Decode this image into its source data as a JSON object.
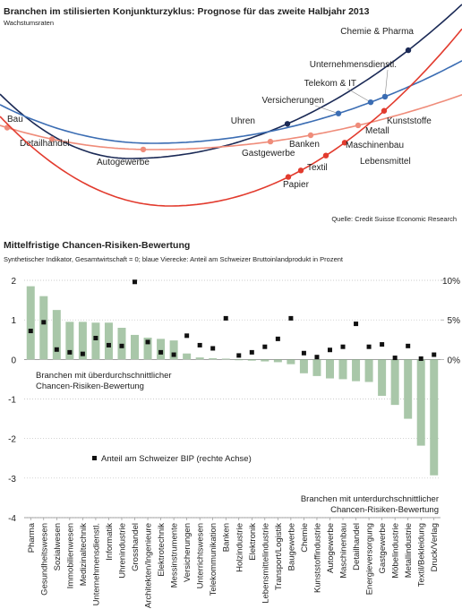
{
  "chart_data": [
    {
      "type": "cycle",
      "title": "Branchen im stilisierten Konjunkturzyklus: Prognose für das zweite Halbjahr 2013",
      "subtitle": "Wachstumsraten",
      "source": "Quelle: Credit Suisse Economic Research",
      "curves": [
        {
          "color": "#1b2a56",
          "labels": [
            "Uhren",
            "Chemie & Pharma"
          ]
        },
        {
          "color": "#3b6db3",
          "labels": [
            "Versicherungen",
            "Telekom & IT",
            "Unternehmensdienstl."
          ]
        },
        {
          "color": "#ef8c7a",
          "labels": [
            "Bau",
            "Detailhandel",
            "Autogewerbe",
            "Gastgewerbe",
            "Banken",
            "Metall"
          ]
        },
        {
          "color": "#e23b2e",
          "labels": [
            "Papier",
            "Textil",
            "Lebensmittel",
            "Maschinenbau",
            "Kunststoffe"
          ]
        }
      ]
    },
    {
      "type": "bar",
      "title": "Mittelfristige Chancen-Risiken-Bewertung",
      "subtitle": "Synthetischer Indikator, Gesamtwirtschaft = 0; blaue Vierecke: Anteil am Schweizer Bruttoinlandprodukt in Prozent",
      "categories": [
        "Pharma",
        "Gesundheitswesen",
        "Sozialwesen",
        "Immobilienwesen",
        "Medizinaltechnik",
        "Unternehmensdienstl.",
        "Informatik",
        "Uhrenindustrie",
        "Grosshandel",
        "Architekten/Ingenieure",
        "Elektrotechnik",
        "Messinstrumente",
        "Versicherungen",
        "Unterrichtswesen",
        "Telekommunikation",
        "Banken",
        "Holzindustrie",
        "Elektronik",
        "Lebensmittelindustrie",
        "Transport/Logistik",
        "Baugewerbe",
        "Chemie",
        "Kunststoffindustrie",
        "Autogewerbe",
        "Maschinenbau",
        "Detailhandel",
        "Energieversorgung",
        "Gastgewerbe",
        "Möbelindustrie",
        "Metallindustrie",
        "Textil/Bekleidung",
        "Druck/Verlag"
      ],
      "series": [
        {
          "color": "#a9c7a9",
          "values": [
            1.85,
            1.6,
            1.25,
            0.95,
            0.95,
            0.93,
            0.93,
            0.8,
            0.62,
            0.55,
            0.52,
            0.48,
            0.15,
            0.05,
            0.03,
            0.02,
            -0.02,
            -0.03,
            -0.05,
            -0.07,
            -0.12,
            -0.35,
            -0.42,
            -0.48,
            -0.5,
            -0.55,
            -0.57,
            -0.92,
            -1.15,
            -1.5,
            -2.18,
            -2.93
          ]
        },
        {
          "name": "Anteil am Schweizer BIP (rechte Achse)",
          "color": "#111111",
          "axis": "y2",
          "type": "scatter",
          "values": [
            3.6,
            4.7,
            1.25,
            0.9,
            0.7,
            2.7,
            1.8,
            1.7,
            9.8,
            2.2,
            0.9,
            0.6,
            3.0,
            1.8,
            1.4,
            5.2,
            0.5,
            0.9,
            1.6,
            2.6,
            5.2,
            0.8,
            0.3,
            1.2,
            1.6,
            4.5,
            1.6,
            1.9,
            0.2,
            1.7,
            0.1,
            0.6
          ]
        }
      ],
      "ylim": [
        -4,
        2
      ],
      "yticks": [
        -4,
        -3,
        -2,
        -1,
        0,
        1,
        2
      ],
      "y2lim": [
        -20,
        10
      ],
      "y2ticks": [
        {
          "value": 0,
          "label": "0%"
        },
        {
          "value": 5,
          "label": "5%"
        },
        {
          "value": 10,
          "label": "10%"
        }
      ],
      "grid": true,
      "annotations": [
        [
          "Branchen mit überdurchschnittlicher",
          "Chancen-Risiken-Bewertung"
        ],
        [
          "Branchen mit unterdurchschnittlicher",
          "Chancen-Risiken-Bewertung"
        ]
      ]
    }
  ]
}
